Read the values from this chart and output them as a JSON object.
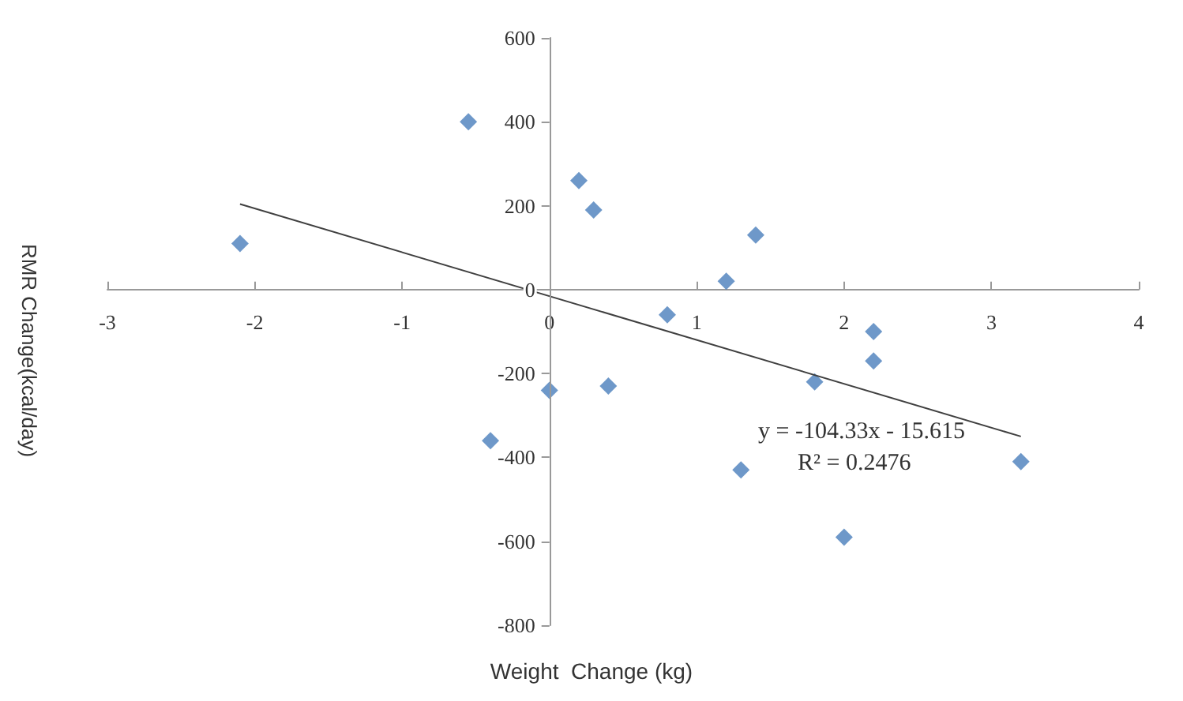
{
  "chart_data": {
    "type": "scatter",
    "xlabel": "Weight  Change (kg)",
    "ylabel": "RMR Change(kcal/day)",
    "xlim": [
      -3,
      4
    ],
    "xticks": [
      -3,
      -2,
      -1,
      0,
      1,
      2,
      3,
      4
    ],
    "ylim": [
      -800,
      600
    ],
    "yticks": [
      -800,
      -600,
      -400,
      -200,
      0,
      200,
      400,
      600
    ],
    "grid": false,
    "marker": "diamond",
    "series": [
      {
        "color": "#4a7ebb",
        "x": [
          -2.1,
          -0.55,
          0.2,
          0.3,
          1.4,
          1.2,
          0.8,
          2.2,
          2.2,
          1.8,
          0.4,
          0,
          -0.4,
          1.3,
          2.0,
          3.2
        ],
        "values": [
          110,
          400,
          260,
          190,
          130,
          20,
          -60,
          -100,
          -170,
          -220,
          -230,
          -240,
          -360,
          -430,
          -590,
          -410
        ]
      },
      {
        "type": "line",
        "color": "#404040",
        "marker": "none",
        "x": [
          -2.1,
          3.2
        ],
        "values": [
          204,
          -350
        ]
      }
    ],
    "annotations": [
      "y = -104.33x - 15.615",
      "R² = 0.2476"
    ]
  }
}
